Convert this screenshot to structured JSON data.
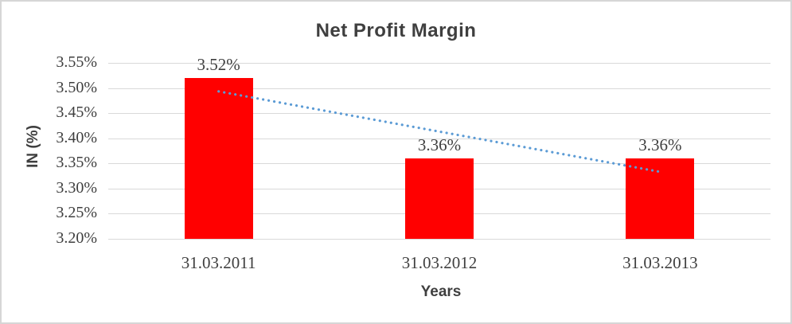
{
  "chart_data": {
    "type": "bar",
    "title": "Net Profit Margin",
    "categories": [
      "31.03.2011",
      "31.03.2012",
      "31.03.2013"
    ],
    "values": [
      3.52,
      3.36,
      3.36
    ],
    "data_labels": [
      "3.52%",
      "3.36%",
      "3.36%"
    ],
    "xlabel": "Years",
    "ylabel": "IN (%)",
    "ylim": [
      3.2,
      3.55
    ],
    "ytick_step": 0.05,
    "yticks": [
      "3.55%",
      "3.50%",
      "3.45%",
      "3.40%",
      "3.35%",
      "3.30%",
      "3.25%",
      "3.20%"
    ],
    "grid": true,
    "legend_position": "none",
    "trendline": {
      "type": "linear",
      "style": "dotted",
      "start_value": 3.4933,
      "end_value": 3.3333
    },
    "colors": {
      "bar": "#FF0000",
      "trendline": "#5B9BD5",
      "gridline": "#D9D9D9",
      "text": "#3F3F3F",
      "frame_border": "#D6D6D6"
    }
  }
}
